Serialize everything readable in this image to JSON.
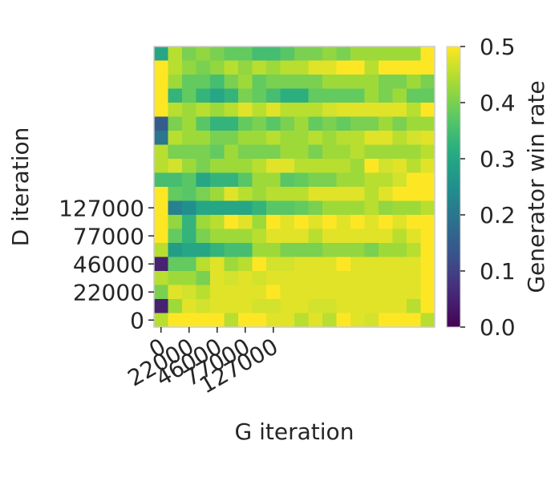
{
  "chart_data": {
    "type": "heatmap",
    "title": "",
    "xlabel": "G iteration",
    "ylabel": "D iteration",
    "x_tick_labels": [
      "0",
      "22000",
      "46000",
      "77000",
      "127000"
    ],
    "y_tick_labels": [
      "0",
      "22000",
      "46000",
      "77000",
      "127000"
    ],
    "colorbar_label": "Generator win rate",
    "colorbar_ticks": [
      "0.0",
      "0.1",
      "0.2",
      "0.3",
      "0.4",
      "0.5"
    ],
    "colorbar_range": [
      0.0,
      0.5
    ],
    "colormap": "viridis",
    "grid_cols": 20,
    "row_order": "top-to-bottom (highest D iteration first)",
    "values": [
      [
        0.3,
        0.45,
        0.4,
        0.42,
        0.4,
        0.38,
        0.38,
        0.35,
        0.35,
        0.37,
        0.4,
        0.4,
        0.42,
        0.4,
        0.43,
        0.43,
        0.43,
        0.43,
        0.43,
        0.5
      ],
      [
        0.5,
        0.45,
        0.42,
        0.4,
        0.42,
        0.45,
        0.42,
        0.45,
        0.43,
        0.45,
        0.45,
        0.48,
        0.48,
        0.5,
        0.5,
        0.45,
        0.5,
        0.5,
        0.5,
        0.5
      ],
      [
        0.5,
        0.43,
        0.38,
        0.38,
        0.35,
        0.4,
        0.43,
        0.38,
        0.4,
        0.4,
        0.4,
        0.4,
        0.43,
        0.43,
        0.43,
        0.43,
        0.4,
        0.4,
        0.43,
        0.4
      ],
      [
        0.5,
        0.33,
        0.38,
        0.33,
        0.3,
        0.33,
        0.4,
        0.38,
        0.35,
        0.32,
        0.32,
        0.38,
        0.38,
        0.38,
        0.38,
        0.43,
        0.4,
        0.43,
        0.38,
        0.38
      ],
      [
        0.5,
        0.45,
        0.43,
        0.45,
        0.43,
        0.45,
        0.48,
        0.45,
        0.48,
        0.45,
        0.45,
        0.45,
        0.47,
        0.48,
        0.48,
        0.48,
        0.48,
        0.48,
        0.45,
        0.5
      ],
      [
        0.15,
        0.4,
        0.43,
        0.37,
        0.33,
        0.33,
        0.38,
        0.4,
        0.37,
        0.4,
        0.43,
        0.38,
        0.4,
        0.38,
        0.4,
        0.4,
        0.43,
        0.4,
        0.43,
        0.43
      ],
      [
        0.2,
        0.45,
        0.43,
        0.43,
        0.4,
        0.4,
        0.43,
        0.43,
        0.45,
        0.43,
        0.43,
        0.45,
        0.43,
        0.45,
        0.45,
        0.48,
        0.48,
        0.45,
        0.47,
        0.48
      ],
      [
        0.45,
        0.4,
        0.4,
        0.4,
        0.38,
        0.43,
        0.4,
        0.4,
        0.4,
        0.43,
        0.43,
        0.4,
        0.43,
        0.43,
        0.45,
        0.43,
        0.43,
        0.43,
        0.43,
        0.45
      ],
      [
        0.45,
        0.47,
        0.43,
        0.4,
        0.43,
        0.43,
        0.43,
        0.45,
        0.48,
        0.48,
        0.45,
        0.45,
        0.45,
        0.45,
        0.43,
        0.5,
        0.47,
        0.48,
        0.45,
        0.48
      ],
      [
        0.35,
        0.35,
        0.37,
        0.3,
        0.33,
        0.33,
        0.37,
        0.43,
        0.43,
        0.37,
        0.38,
        0.4,
        0.4,
        0.43,
        0.43,
        0.45,
        0.45,
        0.47,
        0.5,
        0.5
      ],
      [
        0.5,
        0.38,
        0.37,
        0.4,
        0.43,
        0.48,
        0.45,
        0.43,
        0.45,
        0.45,
        0.45,
        0.48,
        0.48,
        0.48,
        0.48,
        0.45,
        0.48,
        0.5,
        0.5,
        0.5
      ],
      [
        0.5,
        0.22,
        0.25,
        0.3,
        0.3,
        0.3,
        0.3,
        0.33,
        0.37,
        0.37,
        0.38,
        0.4,
        0.43,
        0.43,
        0.43,
        0.45,
        0.42,
        0.43,
        0.43,
        0.45
      ],
      [
        0.5,
        0.42,
        0.33,
        0.43,
        0.45,
        0.5,
        0.48,
        0.43,
        0.5,
        0.48,
        0.5,
        0.48,
        0.5,
        0.48,
        0.5,
        0.48,
        0.5,
        0.48,
        0.5,
        0.5
      ],
      [
        0.5,
        0.38,
        0.33,
        0.4,
        0.43,
        0.43,
        0.43,
        0.45,
        0.48,
        0.48,
        0.48,
        0.45,
        0.48,
        0.48,
        0.48,
        0.48,
        0.48,
        0.45,
        0.48,
        0.5
      ],
      [
        0.45,
        0.28,
        0.3,
        0.3,
        0.33,
        0.35,
        0.35,
        0.43,
        0.43,
        0.4,
        0.4,
        0.4,
        0.42,
        0.42,
        0.42,
        0.4,
        0.43,
        0.43,
        0.45,
        0.5
      ],
      [
        0.05,
        0.38,
        0.38,
        0.45,
        0.48,
        0.43,
        0.45,
        0.5,
        0.47,
        0.47,
        0.48,
        0.48,
        0.48,
        0.5,
        0.48,
        0.48,
        0.48,
        0.48,
        0.48,
        0.5
      ],
      [
        0.45,
        0.43,
        0.43,
        0.4,
        0.48,
        0.47,
        0.48,
        0.47,
        0.48,
        0.48,
        0.48,
        0.48,
        0.48,
        0.48,
        0.48,
        0.48,
        0.48,
        0.48,
        0.48,
        0.5
      ],
      [
        0.4,
        0.48,
        0.47,
        0.45,
        0.48,
        0.48,
        0.48,
        0.48,
        0.5,
        0.48,
        0.48,
        0.48,
        0.48,
        0.48,
        0.48,
        0.48,
        0.48,
        0.48,
        0.48,
        0.5
      ],
      [
        0.05,
        0.43,
        0.48,
        0.47,
        0.48,
        0.48,
        0.48,
        0.47,
        0.47,
        0.48,
        0.48,
        0.47,
        0.47,
        0.48,
        0.48,
        0.48,
        0.48,
        0.48,
        0.45,
        0.5
      ],
      [
        0.45,
        0.5,
        0.5,
        0.5,
        0.5,
        0.45,
        0.5,
        0.5,
        0.48,
        0.48,
        0.45,
        0.48,
        0.45,
        0.5,
        0.48,
        0.47,
        0.5,
        0.5,
        0.5,
        0.45
      ]
    ]
  }
}
